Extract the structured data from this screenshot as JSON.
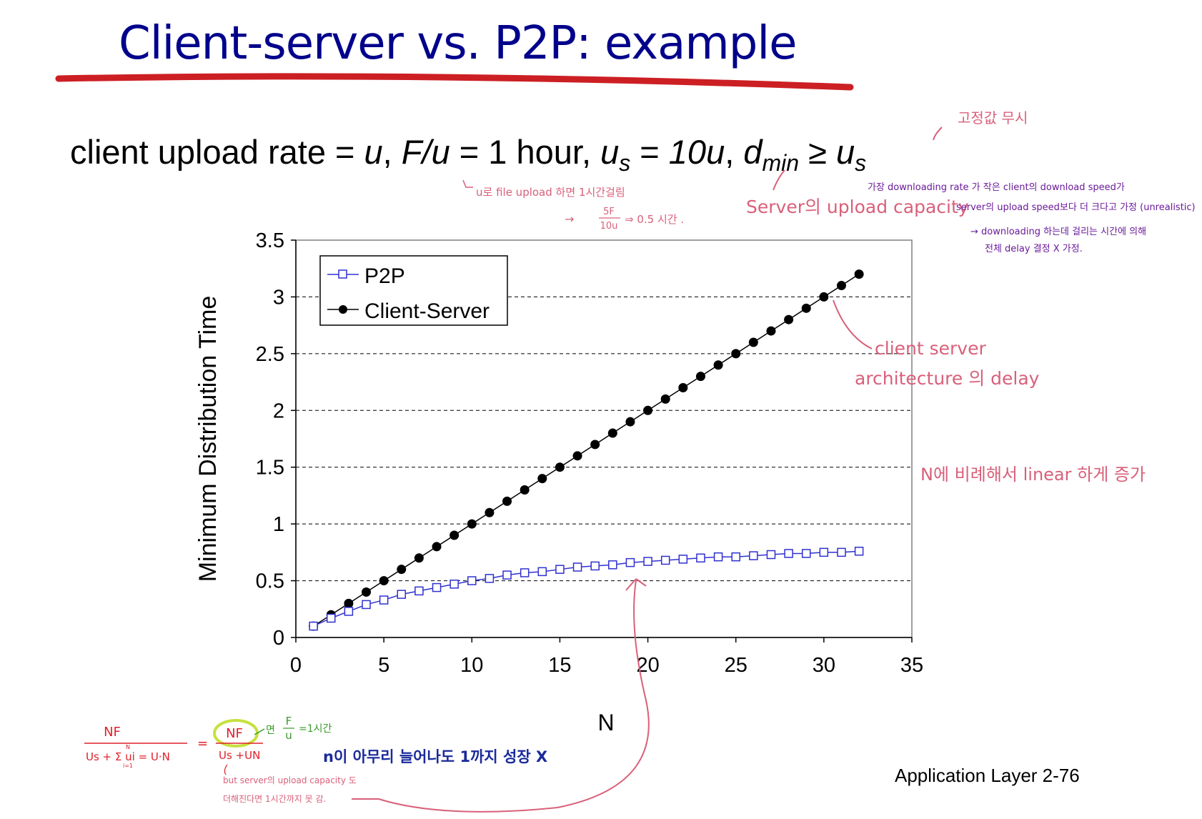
{
  "slide": {
    "title": "Client-server vs. P2P: example",
    "params": {
      "t1": "client upload rate = ",
      "u1": "u",
      "t2": ",  ",
      "fu": "F/u",
      "t3": " = 1 hour,  ",
      "us": "u",
      "us_sub": "s",
      "t4": " = ",
      "tenu": "10u",
      "t5": ",  ",
      "d": "d",
      "d_sub": "min",
      "t6": " ≥ ",
      "us2": "u",
      "us2_sub": "s"
    },
    "footer": "Application Layer 2-76"
  },
  "annotations": {
    "fixed_ignore": "고정값 무시",
    "u_upload": "u로 file upload 하면 1시간걸림",
    "half_hour_arrow": "→",
    "frac_num": "5F",
    "frac_den": "10u",
    "half_hour": "⇒ 0.5 시간 .",
    "server_capacity": "Server의 upload capacity",
    "dmin_note1": "가장 downloading rate 가 작은 client의 download speed가",
    "dmin_note2": "server의 upload speed보다 더 크다고 가정 (unrealistic)",
    "dmin_note3": "→ downloading 하는데 걸리는 시간에 의해",
    "dmin_note4": "전체 delay 결정 X 가정.",
    "cs_delay1": "client server",
    "cs_delay2": "architecture 의 delay",
    "linear": "N에 비례해서 linear 하게 증가",
    "formula_num": "NF",
    "formula_den": "Us + Σ ui = U·N",
    "formula_sum_top": "N",
    "formula_sum_bot": "i=1",
    "eq": "=",
    "formula2_num": "NF",
    "formula2_den": "Us +UN",
    "myeon": "면",
    "fu_num": "F",
    "fu_den": "u",
    "one_hour": "=1시간",
    "n_grow": "n이 아무리 늘어나도 1까지 성장 X",
    "but1": "but server의 upload capacity 도",
    "but2": "더해진다면 1시간까지 못 감."
  },
  "colors": {
    "title": "#00008b",
    "rule": "#cc1f24",
    "p2p": "#3030d0",
    "cs": "#000000",
    "pink": "#d9607a",
    "purple": "#6a1a9a",
    "navy": "#1a2a9a",
    "green": "#3a9a2a",
    "red": "#e0202a"
  },
  "chart_data": {
    "type": "line",
    "title": "",
    "xlabel": "N",
    "ylabel": "Minimum Distribution Time",
    "xlim": [
      0,
      35
    ],
    "ylim": [
      0,
      3.5
    ],
    "xticks": [
      0,
      5,
      10,
      15,
      20,
      25,
      30,
      35
    ],
    "yticks": [
      0,
      0.5,
      1,
      1.5,
      2,
      2.5,
      3,
      3.5
    ],
    "ytick_labels": [
      "0",
      "0.5",
      "1",
      "1.5",
      "2",
      "2.5",
      "3",
      "3.5"
    ],
    "grid": "horizontal dashed",
    "legend": "top-left",
    "x": [
      1,
      2,
      3,
      4,
      5,
      6,
      7,
      8,
      9,
      10,
      11,
      12,
      13,
      14,
      15,
      16,
      17,
      18,
      19,
      20,
      21,
      22,
      23,
      24,
      25,
      26,
      27,
      28,
      29,
      30,
      31,
      32
    ],
    "series": [
      {
        "name": "P2P",
        "marker": "open-square",
        "values": [
          0.1,
          0.17,
          0.23,
          0.29,
          0.33,
          0.38,
          0.41,
          0.44,
          0.47,
          0.5,
          0.52,
          0.55,
          0.57,
          0.58,
          0.6,
          0.62,
          0.63,
          0.64,
          0.66,
          0.67,
          0.68,
          0.69,
          0.7,
          0.71,
          0.71,
          0.72,
          0.73,
          0.74,
          0.74,
          0.75,
          0.75,
          0.76
        ]
      },
      {
        "name": "Client-Server",
        "marker": "filled-circle",
        "values": [
          0.1,
          0.2,
          0.3,
          0.4,
          0.5,
          0.6,
          0.7,
          0.8,
          0.9,
          1.0,
          1.1,
          1.2,
          1.3,
          1.4,
          1.5,
          1.6,
          1.7,
          1.8,
          1.9,
          2.0,
          2.1,
          2.2,
          2.3,
          2.4,
          2.5,
          2.6,
          2.7,
          2.8,
          2.9,
          3.0,
          3.1,
          3.2
        ]
      }
    ]
  }
}
